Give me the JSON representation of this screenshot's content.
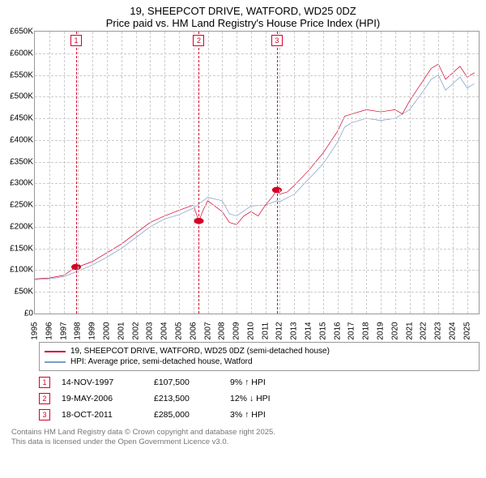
{
  "title": {
    "line1": "19, SHEEPCOT DRIVE, WATFORD, WD25 0DZ",
    "line2": "Price paid vs. HM Land Registry's House Price Index (HPI)"
  },
  "chart": {
    "type": "line",
    "background_color": "#ffffff",
    "grid_color": "#cccccc",
    "axis_color": "#999999",
    "font_size_labels": 10,
    "x": {
      "min": 1995,
      "max": 2025.8,
      "ticks": [
        1995,
        1996,
        1997,
        1998,
        1999,
        2000,
        2001,
        2002,
        2003,
        2004,
        2005,
        2006,
        2007,
        2008,
        2009,
        2010,
        2011,
        2012,
        2013,
        2014,
        2015,
        2016,
        2017,
        2018,
        2019,
        2020,
        2021,
        2022,
        2023,
        2024,
        2025
      ]
    },
    "y": {
      "min": 0,
      "max": 650000,
      "ticks": [
        0,
        50000,
        100000,
        150000,
        200000,
        250000,
        300000,
        350000,
        400000,
        450000,
        500000,
        550000,
        600000,
        650000
      ],
      "tick_labels": [
        "£0",
        "£50K",
        "£100K",
        "£150K",
        "£200K",
        "£250K",
        "£300K",
        "£350K",
        "£400K",
        "£450K",
        "£500K",
        "£550K",
        "£600K",
        "£650K"
      ]
    },
    "series": [
      {
        "name": "price_paid",
        "color": "#d4002a",
        "width": 2,
        "points": [
          [
            1995,
            80000
          ],
          [
            1996,
            82000
          ],
          [
            1997,
            88000
          ],
          [
            1997.87,
            107500
          ],
          [
            1998.2,
            110000
          ],
          [
            1999,
            120000
          ],
          [
            2000,
            140000
          ],
          [
            2001,
            160000
          ],
          [
            2002,
            185000
          ],
          [
            2003,
            210000
          ],
          [
            2004,
            225000
          ],
          [
            2005,
            238000
          ],
          [
            2006,
            250000
          ],
          [
            2006.38,
            213500
          ],
          [
            2006.7,
            240000
          ],
          [
            2007,
            260000
          ],
          [
            2008,
            235000
          ],
          [
            2008.5,
            210000
          ],
          [
            2009,
            205000
          ],
          [
            2009.5,
            225000
          ],
          [
            2010,
            235000
          ],
          [
            2010.5,
            225000
          ],
          [
            2011,
            250000
          ],
          [
            2011.5,
            270000
          ],
          [
            2011.8,
            285000
          ],
          [
            2012,
            275000
          ],
          [
            2012.5,
            280000
          ],
          [
            2013,
            295000
          ],
          [
            2014,
            330000
          ],
          [
            2015,
            370000
          ],
          [
            2016,
            420000
          ],
          [
            2016.5,
            455000
          ],
          [
            2017,
            460000
          ],
          [
            2018,
            470000
          ],
          [
            2019,
            465000
          ],
          [
            2020,
            470000
          ],
          [
            2020.5,
            460000
          ],
          [
            2021,
            490000
          ],
          [
            2022,
            540000
          ],
          [
            2022.5,
            565000
          ],
          [
            2023,
            575000
          ],
          [
            2023.5,
            540000
          ],
          [
            2024,
            555000
          ],
          [
            2024.5,
            570000
          ],
          [
            2025,
            545000
          ],
          [
            2025.5,
            555000
          ]
        ]
      },
      {
        "name": "hpi",
        "color": "#7a9cc6",
        "width": 2,
        "points": [
          [
            1995,
            78000
          ],
          [
            1996,
            80000
          ],
          [
            1997,
            85000
          ],
          [
            1998,
            98000
          ],
          [
            1999,
            112000
          ],
          [
            2000,
            130000
          ],
          [
            2001,
            150000
          ],
          [
            2002,
            175000
          ],
          [
            2003,
            200000
          ],
          [
            2004,
            218000
          ],
          [
            2005,
            228000
          ],
          [
            2006,
            243000
          ],
          [
            2007,
            268000
          ],
          [
            2008,
            260000
          ],
          [
            2008.5,
            230000
          ],
          [
            2009,
            225000
          ],
          [
            2010,
            248000
          ],
          [
            2011,
            250000
          ],
          [
            2011.8,
            260000
          ],
          [
            2012,
            258000
          ],
          [
            2013,
            275000
          ],
          [
            2014,
            310000
          ],
          [
            2015,
            345000
          ],
          [
            2016,
            395000
          ],
          [
            2016.5,
            430000
          ],
          [
            2017,
            440000
          ],
          [
            2018,
            450000
          ],
          [
            2019,
            445000
          ],
          [
            2020,
            450000
          ],
          [
            2021,
            470000
          ],
          [
            2022,
            515000
          ],
          [
            2022.5,
            540000
          ],
          [
            2023,
            550000
          ],
          [
            2023.5,
            515000
          ],
          [
            2024,
            530000
          ],
          [
            2024.5,
            545000
          ],
          [
            2025,
            520000
          ],
          [
            2025.5,
            530000
          ]
        ]
      }
    ],
    "markers": [
      {
        "n": "1",
        "x": 1997.87,
        "y": 107500,
        "color": "#d4002a"
      },
      {
        "n": "2",
        "x": 2006.38,
        "y": 213500,
        "color": "#d4002a"
      },
      {
        "n": "3",
        "x": 2011.8,
        "y": 285000,
        "color": "#d4002a"
      }
    ]
  },
  "legend": {
    "items": [
      {
        "color": "#d4002a",
        "label": "19, SHEEPCOT DRIVE, WATFORD, WD25 0DZ (semi-detached house)"
      },
      {
        "color": "#7a9cc6",
        "label": "HPI: Average price, semi-detached house, Watford"
      }
    ]
  },
  "marker_table": {
    "rows": [
      {
        "n": "1",
        "color": "#d4002a",
        "date": "14-NOV-1997",
        "price": "£107,500",
        "diff": "9% ↑ HPI"
      },
      {
        "n": "2",
        "color": "#d4002a",
        "date": "19-MAY-2006",
        "price": "£213,500",
        "diff": "12% ↓ HPI"
      },
      {
        "n": "3",
        "color": "#d4002a",
        "date": "18-OCT-2011",
        "price": "£285,000",
        "diff": "3% ↑ HPI"
      }
    ]
  },
  "footer": {
    "line1": "Contains HM Land Registry data © Crown copyright and database right 2025.",
    "line2": "This data is licensed under the Open Government Licence v3.0."
  }
}
